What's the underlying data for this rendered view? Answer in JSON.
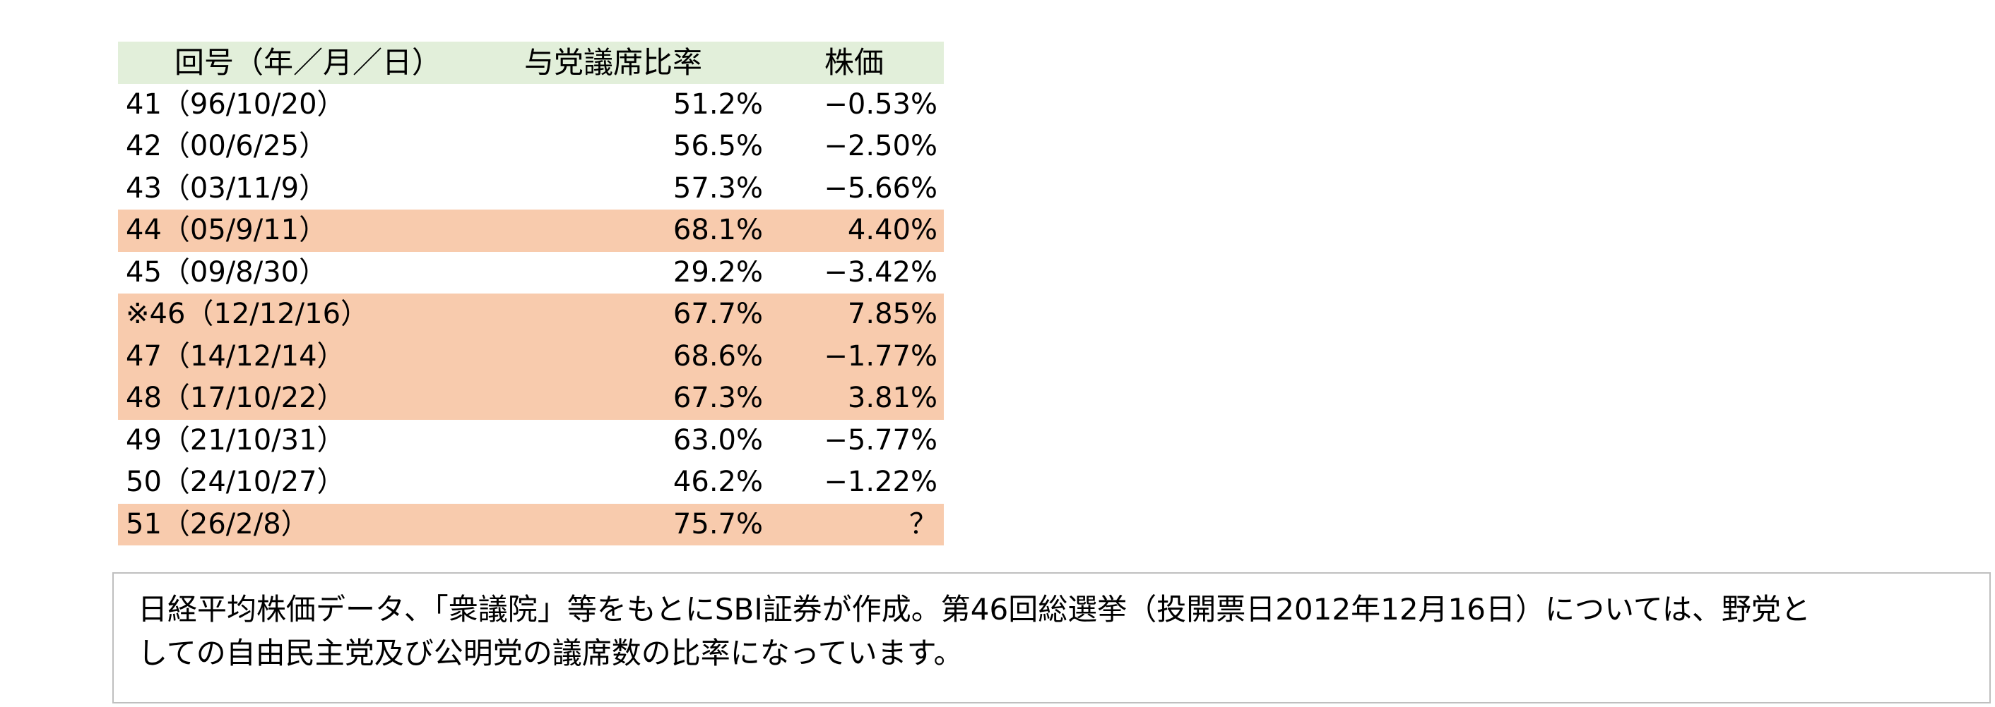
{
  "table": {
    "header": [
      "回号（年／月／日）",
      "与党議席比率",
      "株価"
    ],
    "rows": [
      {
        "cells": [
          "41（96/10/20）",
          "51.2%",
          "−0.53%"
        ],
        "highlighted": false
      },
      {
        "cells": [
          "42（00/6/25）",
          "56.5%",
          "−2.50%"
        ],
        "highlighted": false
      },
      {
        "cells": [
          "43（03/11/9）",
          "57.3%",
          "−5.66%"
        ],
        "highlighted": false
      },
      {
        "cells": [
          "44（05/9/11）",
          "68.1%",
          "4.40%"
        ],
        "highlighted": true
      },
      {
        "cells": [
          "45（09/8/30）",
          "29.2%",
          "−3.42%"
        ],
        "highlighted": false
      },
      {
        "cells": [
          "※46（12/12/16）",
          "67.7%",
          "7.85%"
        ],
        "highlighted": true
      },
      {
        "cells": [
          "47（14/12/14）",
          "68.6%",
          "−1.77%"
        ],
        "highlighted": true
      },
      {
        "cells": [
          "48（17/10/22）",
          "67.3%",
          "3.81%"
        ],
        "highlighted": true
      },
      {
        "cells": [
          "49（21/10/31）",
          "63.0%",
          "−5.77%"
        ],
        "highlighted": false
      },
      {
        "cells": [
          "50（24/10/27）",
          "46.2%",
          "−1.22%"
        ],
        "highlighted": false
      },
      {
        "cells": [
          "51（26/2/8）",
          "75.7%",
          "？"
        ],
        "highlighted": true
      }
    ]
  },
  "note": {
    "lines": [
      "日経平均株価データ、「衆議院」等をもとにSBI証券が作成。第46回総選挙（投開票日2012年12月16日）については、野党と",
      "しての自由民主党及び公明党の議席数の比率になっています。"
    ]
  }
}
